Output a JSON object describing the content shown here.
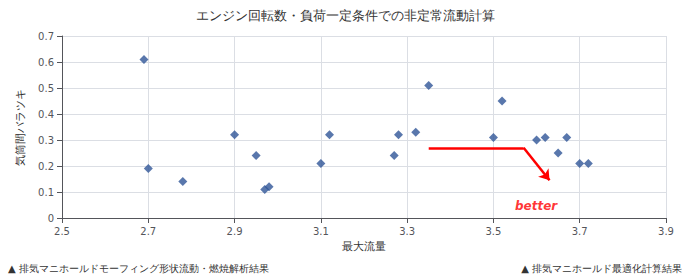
{
  "chart_data": {
    "type": "scatter",
    "title": "エンジン回転数・負荷一定条件での非定常流動計算",
    "xlabel": "最大流量",
    "ylabel": "気筒間バラツキ",
    "x": [
      2.69,
      2.7,
      2.78,
      2.9,
      2.95,
      2.97,
      2.98,
      3.1,
      3.12,
      3.27,
      3.28,
      3.32,
      3.35,
      3.5,
      3.52,
      3.6,
      3.62,
      3.65,
      3.67,
      3.7,
      3.72
    ],
    "values": [
      0.61,
      0.19,
      0.14,
      0.32,
      0.24,
      0.11,
      0.12,
      0.21,
      0.32,
      0.24,
      0.32,
      0.33,
      0.51,
      0.31,
      0.45,
      0.3,
      0.31,
      0.25,
      0.31,
      0.21,
      0.21
    ],
    "color": "#2f5597",
    "marker": "diamond",
    "xlim": [
      2.5,
      3.9
    ],
    "ylim": [
      0,
      0.7
    ],
    "xticks": [
      2.5,
      2.7,
      2.9,
      3.1,
      3.3,
      3.5,
      3.7,
      3.9
    ],
    "yticks": [
      0,
      0.1,
      0.2,
      0.3,
      0.4,
      0.5,
      0.6,
      0.7
    ],
    "grid": true,
    "annotations": [
      {
        "text": "better",
        "x": 3.55,
        "y": 0.045,
        "color": "red"
      },
      {
        "type": "arrow",
        "x": [
          3.35,
          3.57,
          3.63
        ],
        "y": [
          0.27,
          0.27,
          0.145
        ],
        "color": "red"
      },
      {
        "text": "▲ 排気マニホールド最適化計算結果"
      },
      {
        "text": "▲ 排気マニホールドモーフィング形状流動・燃焼解析結果"
      }
    ]
  }
}
